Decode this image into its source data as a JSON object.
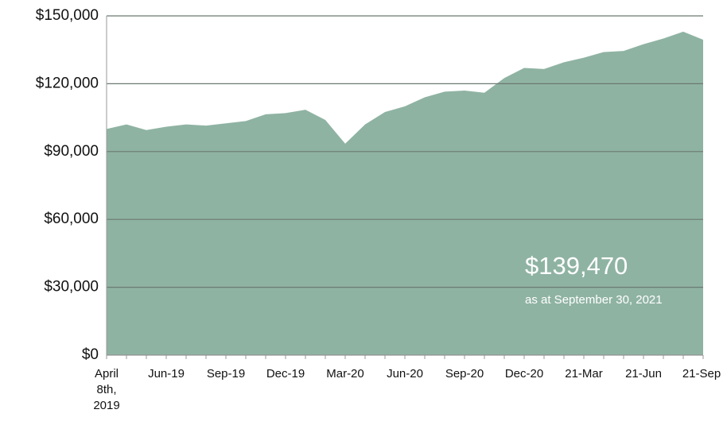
{
  "chart_data": {
    "type": "area",
    "categories": [
      "April 8th, 2019",
      null,
      null,
      "Jun-19",
      null,
      null,
      "Sep-19",
      null,
      null,
      "Dec-19",
      null,
      null,
      "Mar-20",
      null,
      null,
      "Jun-20",
      null,
      null,
      "Sep-20",
      null,
      null,
      "Dec-20",
      null,
      null,
      "21-Mar",
      null,
      null,
      "21-Jun",
      null,
      null,
      "21-Sep"
    ],
    "values": [
      100000,
      102000,
      99500,
      101000,
      102000,
      101500,
      102500,
      103500,
      106500,
      107000,
      108500,
      104000,
      93500,
      102000,
      107500,
      110000,
      114000,
      116500,
      117000,
      116000,
      122500,
      127000,
      126500,
      129500,
      131500,
      134000,
      134500,
      137500,
      140000,
      143000,
      139470
    ],
    "color": "#8fb3a3",
    "ylim": [
      0,
      150000
    ],
    "yticks": [
      {
        "value": 0,
        "label": "$0"
      },
      {
        "value": 30000,
        "label": "$30,000"
      },
      {
        "value": 60000,
        "label": "$60,000"
      },
      {
        "value": 90000,
        "label": "$90,000"
      },
      {
        "value": 120000,
        "label": "$120,000"
      },
      {
        "value": 150000,
        "label": "$150,000"
      }
    ],
    "grid": true,
    "annotation": "$139,470",
    "annotation_note": "as at September 30, 2021"
  }
}
